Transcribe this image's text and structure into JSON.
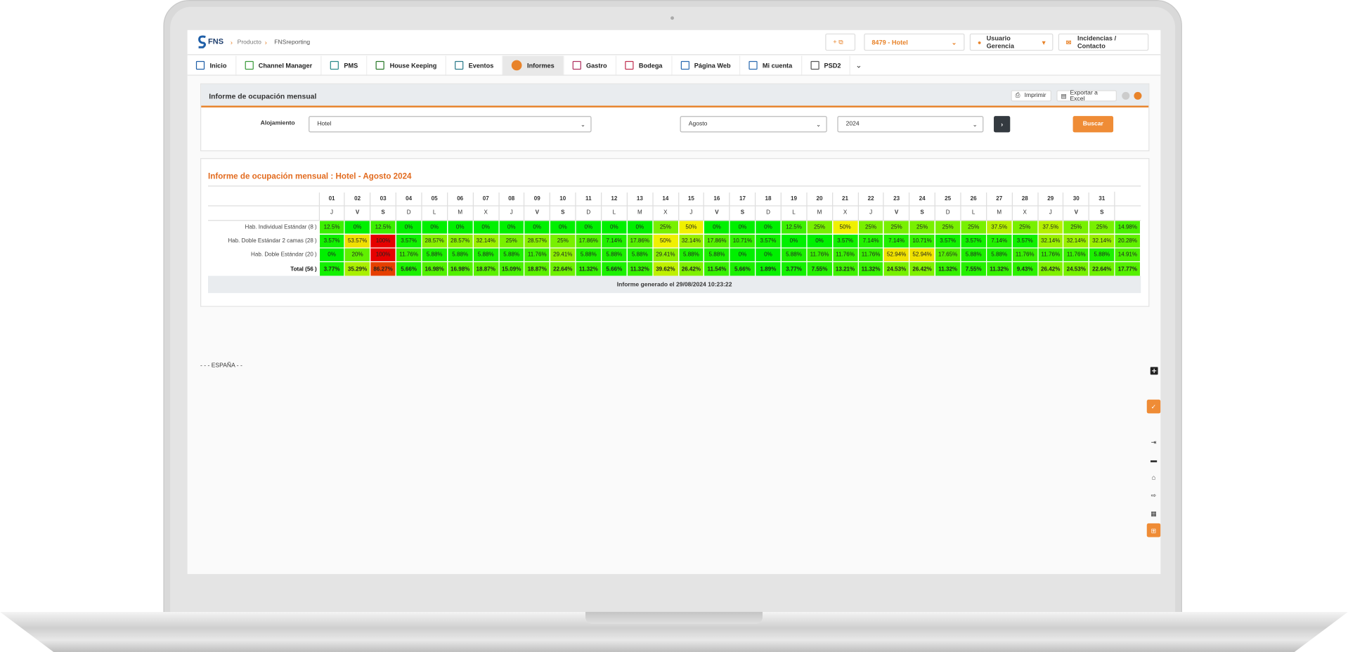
{
  "header": {
    "logo": "FNS",
    "breadcrumb": [
      "Producto",
      "FNSreporting"
    ],
    "hotel": "8479 - Hotel",
    "user": "Usuario Gerencia",
    "contact": "Incidencias / Contacto"
  },
  "nav": [
    "Inicio",
    "Channel Manager",
    "PMS",
    "House Keeping",
    "Eventos",
    "Informes",
    "Gastro",
    "Bodega",
    "Página Web",
    "Mi cuenta",
    "PSD2"
  ],
  "panel": {
    "title": "Informe de ocupación mensual",
    "print": "Imprimir",
    "export": "Exportar a Excel",
    "label": "Alojamiento",
    "accommodation": "Hotel",
    "month": "Agosto",
    "year": "2024",
    "search": "Buscar"
  },
  "report": {
    "title": "Informe de ocupación mensual : Hotel - Agosto 2024",
    "days": [
      "01",
      "02",
      "03",
      "04",
      "05",
      "06",
      "07",
      "08",
      "09",
      "10",
      "11",
      "12",
      "13",
      "14",
      "15",
      "16",
      "17",
      "18",
      "19",
      "20",
      "21",
      "22",
      "23",
      "24",
      "25",
      "26",
      "27",
      "28",
      "29",
      "30",
      "31"
    ],
    "weekdays": [
      "J",
      "V",
      "S",
      "D",
      "L",
      "M",
      "X",
      "J",
      "V",
      "S",
      "D",
      "L",
      "M",
      "X",
      "J",
      "V",
      "S",
      "D",
      "L",
      "M",
      "X",
      "J",
      "V",
      "S",
      "D",
      "L",
      "M",
      "X",
      "J",
      "V",
      "S"
    ],
    "rows": [
      {
        "label": "Hab. Individual Estándar (8 )",
        "values": [
          "12.5%",
          "0%",
          "12.5%",
          "0%",
          "0%",
          "0%",
          "0%",
          "0%",
          "0%",
          "0%",
          "0%",
          "0%",
          "0%",
          "25%",
          "50%",
          "0%",
          "0%",
          "0%",
          "12.5%",
          "25%",
          "50%",
          "25%",
          "25%",
          "25%",
          "25%",
          "25%",
          "37.5%",
          "25%",
          "37.5%",
          "25%",
          "25%",
          "14.98%"
        ]
      },
      {
        "label": "Hab. Doble Estándar 2 camas (28 )",
        "values": [
          "3.57%",
          "53.57%",
          "100%",
          "3.57%",
          "28.57%",
          "28.57%",
          "32.14%",
          "25%",
          "28.57%",
          "25%",
          "17.86%",
          "7.14%",
          "17.86%",
          "50%",
          "32.14%",
          "17.86%",
          "10.71%",
          "3.57%",
          "0%",
          "0%",
          "3.57%",
          "7.14%",
          "7.14%",
          "10.71%",
          "3.57%",
          "3.57%",
          "7.14%",
          "3.57%",
          "32.14%",
          "32.14%",
          "32.14%",
          "20.28%"
        ]
      },
      {
        "label": "Hab. Doble Estándar (20 )",
        "values": [
          "0%",
          "20%",
          "100%",
          "11.76%",
          "5.88%",
          "5.88%",
          "5.88%",
          "5.88%",
          "11.76%",
          "29.41%",
          "5.88%",
          "5.88%",
          "5.88%",
          "29.41%",
          "5.88%",
          "5.88%",
          "0%",
          "0%",
          "5.88%",
          "11.76%",
          "11.76%",
          "11.76%",
          "52.94%",
          "52.94%",
          "17.65%",
          "5.88%",
          "5.88%",
          "11.76%",
          "11.76%",
          "11.76%",
          "5.88%",
          "14.91%"
        ]
      },
      {
        "label": "Total (56 )",
        "values": [
          "3.77%",
          "35.29%",
          "86.27%",
          "5.66%",
          "16.98%",
          "16.98%",
          "18.87%",
          "15.09%",
          "18.87%",
          "22.64%",
          "11.32%",
          "5.66%",
          "11.32%",
          "39.62%",
          "26.42%",
          "11.54%",
          "5.66%",
          "1.89%",
          "3.77%",
          "7.55%",
          "13.21%",
          "11.32%",
          "24.53%",
          "26.42%",
          "11.32%",
          "7.55%",
          "11.32%",
          "9.43%",
          "26.42%",
          "24.53%",
          "22.64%",
          "17.77%"
        ]
      }
    ],
    "footer": "Informe generado el 29/08/2024 10:23:22"
  },
  "country": "- - - ESPAÑA - -"
}
